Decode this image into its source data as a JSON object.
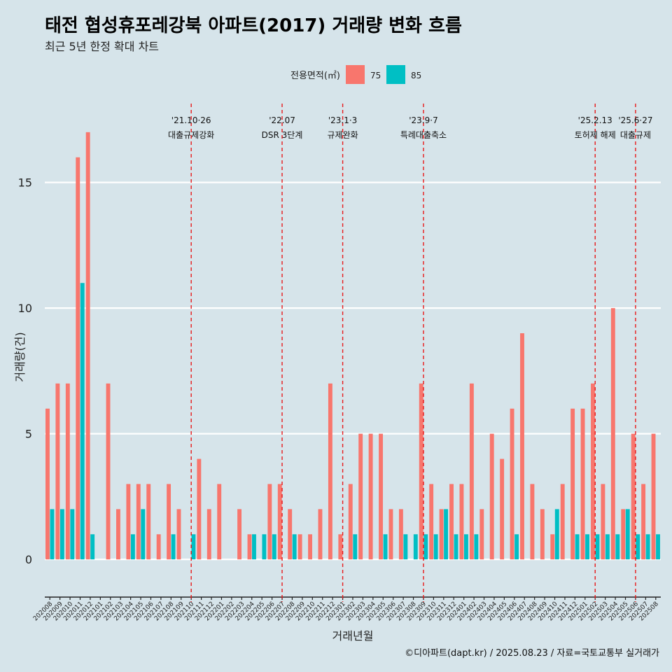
{
  "title": "태전 협성휴포레강북 아파트(2017) 거래량 변화 흐름",
  "subtitle": "최근 5년 한정 확대 차트",
  "caption": "©디아파트(dapt.kr) / 2025.08.23 / 자료=국토교통부 실거래가",
  "colors": {
    "background": "#d6e4ea",
    "s75": "#f8766d",
    "s85": "#00bfc4",
    "event_line": "#e8191a",
    "grid": "#ffffff"
  },
  "chart_data": {
    "type": "bar",
    "xlabel": "거래년월",
    "ylabel": "거래량(건)",
    "ylim": [
      -1.5,
      18.5
    ],
    "yticks": [
      0,
      5,
      10,
      15
    ],
    "grid": true,
    "legend": {
      "title": "전용면적(㎡)",
      "placement": "top"
    },
    "categories": [
      "202008",
      "202009",
      "202010",
      "202011",
      "202012",
      "202101",
      "202102",
      "202103",
      "202104",
      "202105",
      "202106",
      "202107",
      "202108",
      "202109",
      "202110",
      "202111",
      "202112",
      "202201",
      "202202",
      "202203",
      "202204",
      "202205",
      "202206",
      "202207",
      "202208",
      "202209",
      "202210",
      "202211",
      "202212",
      "202301",
      "202302",
      "202303",
      "202304",
      "202305",
      "202306",
      "202307",
      "202308",
      "202309",
      "202310",
      "202311",
      "202312",
      "202401",
      "202402",
      "202403",
      "202404",
      "202405",
      "202406",
      "202407",
      "202408",
      "202409",
      "202410",
      "202411",
      "202412",
      "202501",
      "202502",
      "202503",
      "202504",
      "202505",
      "202506",
      "202507",
      "202508"
    ],
    "series": [
      {
        "name": "75",
        "values": [
          6,
          7,
          7,
          16,
          17,
          0,
          7,
          2,
          3,
          3,
          3,
          1,
          3,
          2,
          0,
          4,
          2,
          3,
          0,
          2,
          1,
          0,
          3,
          3,
          2,
          1,
          1,
          2,
          7,
          1,
          3,
          5,
          5,
          5,
          2,
          2,
          0,
          7,
          3,
          2,
          3,
          3,
          7,
          2,
          5,
          4,
          6,
          9,
          3,
          2,
          1,
          3,
          6,
          6,
          7,
          3,
          10,
          2,
          5,
          3,
          5
        ]
      },
      {
        "name": "85",
        "values": [
          2,
          2,
          2,
          11,
          1,
          0,
          0,
          0,
          1,
          2,
          0,
          0,
          1,
          0,
          1,
          0,
          0,
          0,
          0,
          0,
          1,
          1,
          1,
          0,
          1,
          0,
          0,
          0,
          0,
          0,
          1,
          0,
          0,
          1,
          0,
          1,
          1,
          1,
          1,
          2,
          1,
          1,
          1,
          0,
          0,
          0,
          1,
          0,
          0,
          0,
          2,
          0,
          1,
          1,
          1,
          1,
          1,
          2,
          1,
          1,
          1
        ]
      }
    ],
    "events": [
      {
        "date": "'21.10·26",
        "label": "대출규제강화",
        "at": "202110"
      },
      {
        "date": "'22.07",
        "label": "DSR 3단계",
        "at": "202207"
      },
      {
        "date": "'23.1·3",
        "label": "규제완화",
        "at": "202301"
      },
      {
        "date": "'23.9·7",
        "label": "특례대출축소",
        "at": "202309"
      },
      {
        "date": "'25.2.13",
        "label": "토허제 해제",
        "at": "202502"
      },
      {
        "date": "'25.6·27",
        "label": "대출규제",
        "at": "202506"
      }
    ]
  }
}
